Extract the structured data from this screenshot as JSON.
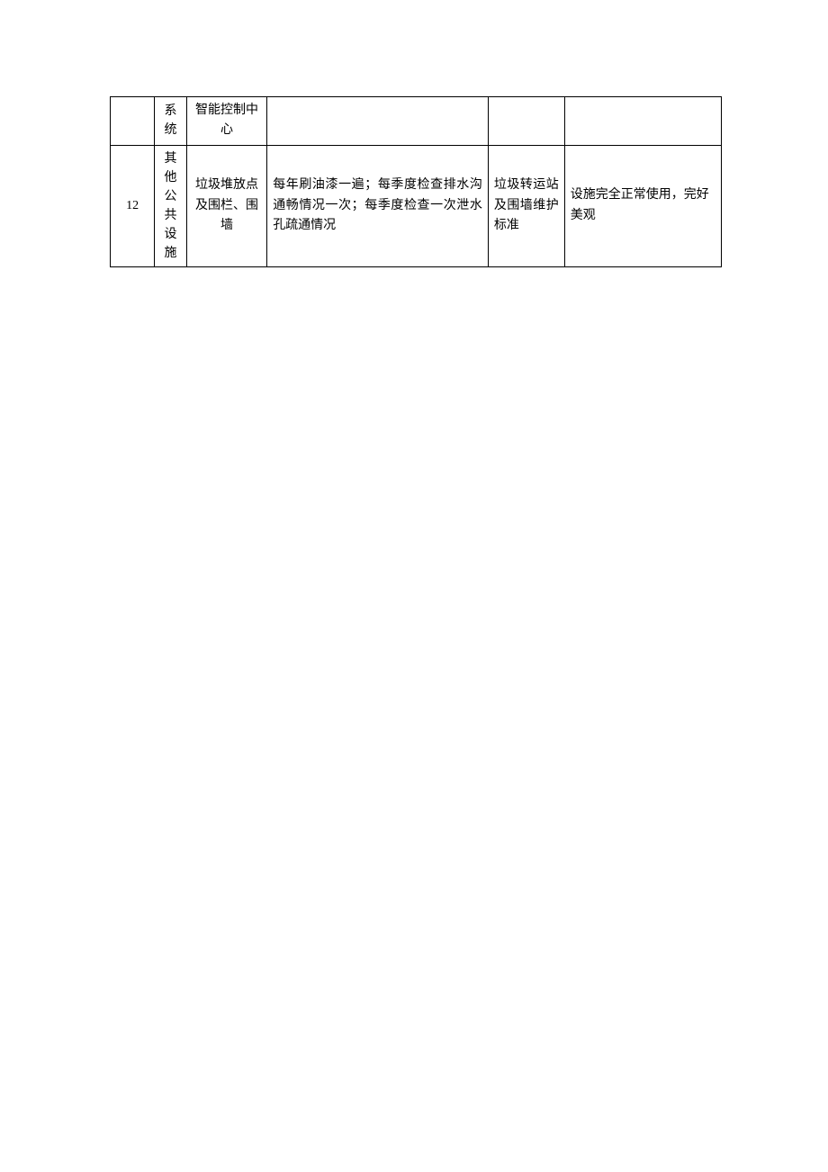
{
  "table": {
    "border_color": "#000000",
    "background_color": "#ffffff",
    "text_color": "#000000",
    "font_size": 14,
    "rows": [
      {
        "cells": [
          {
            "text": ""
          },
          {
            "text": "系统"
          },
          {
            "text": "智能控制中心"
          },
          {
            "text": ""
          },
          {
            "text": ""
          },
          {
            "text": ""
          }
        ]
      },
      {
        "cells": [
          {
            "text": "12"
          },
          {
            "text": "其他公共设施"
          },
          {
            "text": "垃圾堆放点及围栏、围墙"
          },
          {
            "text": "每年刷油漆一遍；每季度检查排水沟通畅情况一次；每季度检查一次泄水孔疏通情况"
          },
          {
            "text": "垃圾转运站及围墙维护标准"
          },
          {
            "text": "设施完全正常使用，完好美观"
          }
        ]
      }
    ]
  }
}
